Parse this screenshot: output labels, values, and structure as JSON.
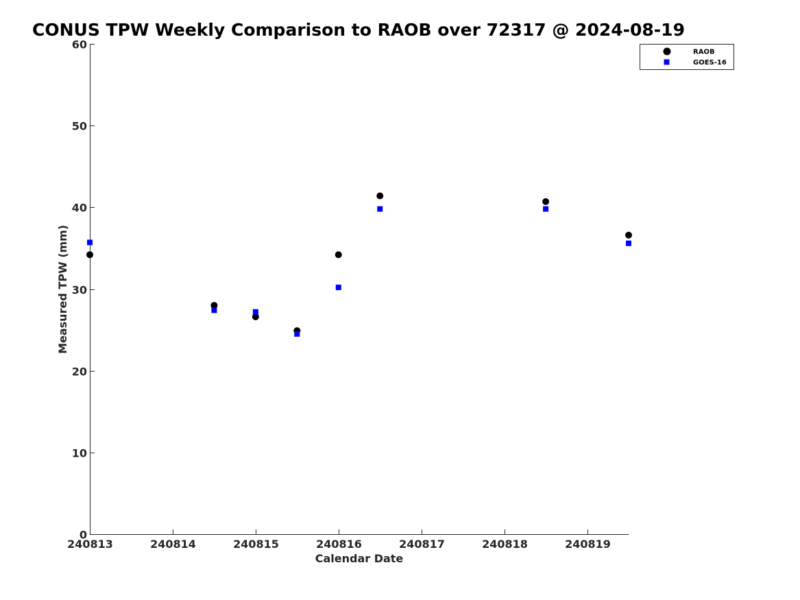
{
  "chart_data": {
    "type": "scatter",
    "title": "CONUS TPW Weekly Comparison to RAOB over 72317 @ 2024-08-19",
    "xlabel": "Calendar Date",
    "ylabel": "Measured TPW (mm)",
    "xlim": [
      240813,
      240819.5
    ],
    "ylim": [
      0,
      60
    ],
    "x_ticks": [
      240813,
      240814,
      240815,
      240816,
      240817,
      240818,
      240819
    ],
    "x_tick_labels": [
      "240813",
      "240814",
      "240815",
      "240816",
      "240817",
      "240818",
      "240819"
    ],
    "y_ticks": [
      0,
      10,
      20,
      30,
      40,
      50,
      60
    ],
    "y_tick_labels": [
      "0",
      "10",
      "20",
      "30",
      "40",
      "50",
      "60"
    ],
    "grid": false,
    "legend_position": "top-right",
    "series": [
      {
        "name": "RAOB",
        "marker": "circle",
        "color": "#000000",
        "points": [
          {
            "x": 240813.0,
            "y": 34.2
          },
          {
            "x": 240814.5,
            "y": 28.0
          },
          {
            "x": 240815.0,
            "y": 26.6
          },
          {
            "x": 240815.5,
            "y": 24.9
          },
          {
            "x": 240816.0,
            "y": 34.2
          },
          {
            "x": 240816.5,
            "y": 41.4
          },
          {
            "x": 240818.5,
            "y": 40.7
          },
          {
            "x": 240819.5,
            "y": 36.6
          }
        ]
      },
      {
        "name": "GOES-16",
        "marker": "square",
        "color": "#0000ff",
        "points": [
          {
            "x": 240813.0,
            "y": 35.7
          },
          {
            "x": 240814.5,
            "y": 27.4
          },
          {
            "x": 240815.0,
            "y": 27.2
          },
          {
            "x": 240815.5,
            "y": 24.5
          },
          {
            "x": 240816.0,
            "y": 30.2
          },
          {
            "x": 240816.5,
            "y": 39.8
          },
          {
            "x": 240818.5,
            "y": 39.8
          },
          {
            "x": 240819.5,
            "y": 35.6
          }
        ]
      }
    ]
  }
}
